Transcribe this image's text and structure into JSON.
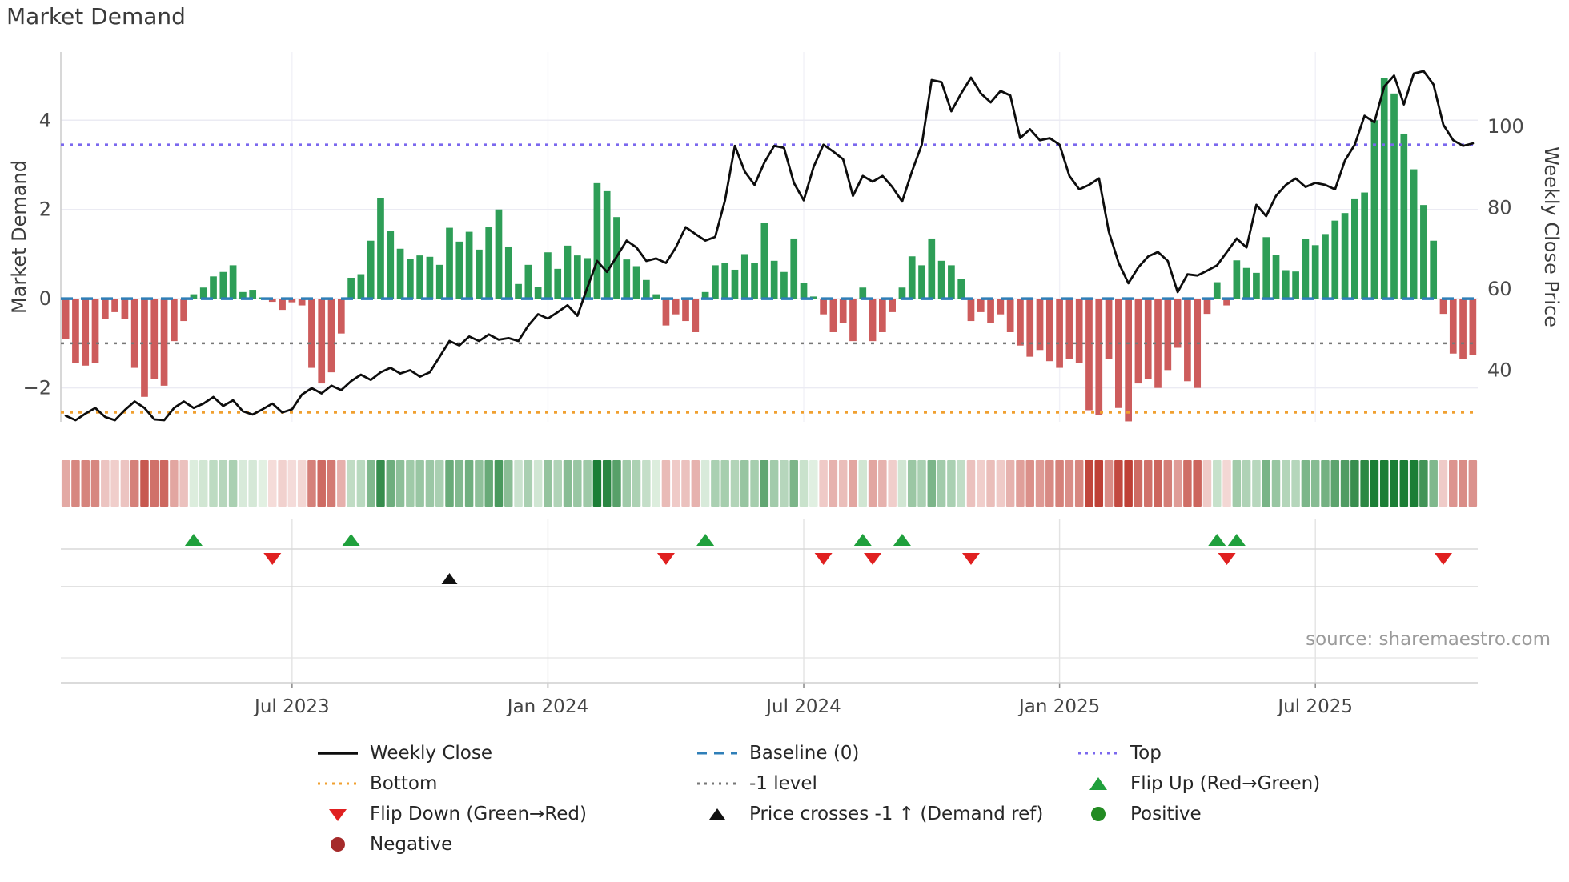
{
  "title": "Market Demand",
  "y_left_label": "Market Demand",
  "y_right_label": "Weekly Close Price",
  "source": "source: sharemaestro.com",
  "colors": {
    "bar_positive": "#2e9e57",
    "bar_negative": "#cd5c5c",
    "price_line": "#0d0d0d",
    "baseline": "#2f7fb8",
    "top_line": "#7b68ee",
    "bottom_line": "#f0a030",
    "minus_one_line": "#777777",
    "flip_up": "#1fa03c",
    "flip_down": "#e02020",
    "price_cross": "#111111",
    "positive_marker": "#228b22",
    "negative_marker": "#a52a2a",
    "heat_pos_light": "#e4f1e4",
    "heat_pos_dark": "#1b7e35",
    "heat_neg_light": "#f6e0de",
    "heat_neg_dark": "#bf4036"
  },
  "chart_data": {
    "type": "bar",
    "x_unit": "week",
    "n_weeks": 144,
    "title": "Market Demand",
    "ylabel_left": "Market Demand",
    "ylabel_right": "Weekly Close Price",
    "ylim_left": [
      -2.76,
      5.53
    ],
    "ylim_right": [
      27.3,
      118.3
    ],
    "grid": true,
    "legend_position": "bottom",
    "y_left_ticks": [
      {
        "label": "4",
        "value": 4
      },
      {
        "label": "2",
        "value": 2
      },
      {
        "label": "0",
        "value": 0
      },
      {
        "label": "−2",
        "value": -2
      }
    ],
    "y_right_ticks": [
      {
        "label": "100",
        "value": 100
      },
      {
        "label": "80",
        "value": 80
      },
      {
        "label": "60",
        "value": 60
      },
      {
        "label": "40",
        "value": 40
      }
    ],
    "x_ticks": [
      {
        "week": 23,
        "label": "Jul 2023"
      },
      {
        "week": 49,
        "label": "Jan 2024"
      },
      {
        "week": 75,
        "label": "Jul 2024"
      },
      {
        "week": 101,
        "label": "Jan 2025"
      },
      {
        "week": 127,
        "label": "Jul 2025"
      }
    ],
    "reference_lines": {
      "baseline": 0,
      "top": 3.45,
      "bottom": -2.55,
      "minus_one": -1
    },
    "series": [
      {
        "name": "Market Demand",
        "type": "bar",
        "axis": "left",
        "values": [
          -0.9,
          -1.45,
          -1.5,
          -1.45,
          -0.45,
          -0.3,
          -0.45,
          -1.55,
          -2.2,
          -1.8,
          -1.95,
          -0.95,
          -0.5,
          0.1,
          0.25,
          0.5,
          0.6,
          0.75,
          0.15,
          0.2,
          0.03,
          -0.07,
          -0.25,
          -0.08,
          -0.15,
          -1.55,
          -1.9,
          -1.65,
          -0.78,
          0.47,
          0.55,
          1.3,
          2.25,
          1.52,
          1.12,
          0.89,
          0.97,
          0.94,
          0.76,
          1.59,
          1.28,
          1.5,
          1.1,
          1.6,
          2.0,
          1.17,
          0.33,
          0.76,
          0.26,
          1.04,
          0.67,
          1.19,
          0.97,
          0.91,
          2.59,
          2.41,
          1.83,
          0.88,
          0.73,
          0.42,
          0.1,
          -0.6,
          -0.35,
          -0.5,
          -0.75,
          0.15,
          0.75,
          0.8,
          0.65,
          1.0,
          0.8,
          1.7,
          0.85,
          0.6,
          1.35,
          0.35,
          0.05,
          -0.35,
          -0.75,
          -0.55,
          -0.95,
          0.25,
          -0.95,
          -0.75,
          -0.3,
          0.25,
          0.95,
          0.75,
          1.35,
          0.85,
          0.75,
          0.45,
          -0.5,
          -0.3,
          -0.55,
          -0.35,
          -0.75,
          -1.05,
          -1.3,
          -1.15,
          -1.4,
          -1.55,
          -1.35,
          -1.45,
          -2.5,
          -2.6,
          -1.35,
          -2.45,
          -2.75,
          -1.9,
          -1.8,
          -2.0,
          -1.6,
          -1.1,
          -1.85,
          -2.0,
          -0.34,
          0.37,
          -0.15,
          0.86,
          0.69,
          0.58,
          1.38,
          0.98,
          0.64,
          0.61,
          1.34,
          1.2,
          1.45,
          1.75,
          1.92,
          2.23,
          2.38,
          4.0,
          4.95,
          4.6,
          3.7,
          2.9,
          2.1,
          1.3,
          -0.34,
          -1.23,
          -1.35,
          -1.26
        ]
      },
      {
        "name": "Weekly Close",
        "type": "line",
        "axis": "right",
        "values": [
          28.8,
          27.7,
          29.3,
          30.7,
          28.5,
          27.7,
          30.2,
          32.3,
          30.7,
          27.9,
          27.7,
          30.7,
          32.3,
          30.7,
          31.8,
          33.4,
          31.2,
          32.6,
          29.9,
          29.1,
          30.4,
          31.8,
          29.6,
          30.4,
          34.0,
          35.6,
          34.3,
          36.2,
          35.1,
          37.3,
          38.9,
          37.6,
          39.5,
          40.6,
          39.2,
          40.0,
          38.4,
          39.5,
          43.3,
          47.2,
          46.1,
          48.3,
          47.2,
          48.8,
          47.5,
          47.9,
          47.2,
          51.0,
          53.8,
          52.7,
          54.3,
          56.0,
          53.4,
          60.3,
          66.9,
          64.2,
          68.0,
          71.9,
          70.2,
          66.9,
          67.5,
          66.4,
          70.2,
          75.2,
          73.5,
          71.9,
          72.8,
          81.8,
          95.2,
          88.9,
          85.6,
          91.1,
          95.2,
          94.7,
          86.1,
          81.8,
          90.0,
          95.5,
          93.8,
          91.9,
          82.9,
          87.8,
          86.4,
          87.8,
          85.1,
          81.5,
          88.9,
          95.5,
          111.4,
          110.9,
          103.7,
          108.1,
          112.0,
          108.1,
          105.9,
          108.7,
          107.6,
          97.1,
          99.3,
          96.6,
          97.1,
          95.5,
          87.8,
          84.5,
          85.6,
          87.2,
          74.1,
          66.4,
          61.4,
          65.3,
          68.0,
          69.1,
          66.9,
          59.2,
          63.6,
          63.3,
          64.5,
          65.8,
          69.1,
          72.4,
          70.2,
          80.7,
          77.9,
          82.9,
          85.6,
          87.2,
          85.1,
          86.1,
          85.6,
          84.5,
          91.6,
          95.5,
          102.6,
          101.0,
          109.8,
          112.5,
          105.4,
          113.0,
          113.6,
          110.3,
          100.4,
          96.6,
          95.2,
          95.8
        ]
      }
    ],
    "markers": {
      "flip_up_weeks": [
        13,
        29,
        65,
        81,
        85,
        117,
        119
      ],
      "flip_down_weeks": [
        21,
        61,
        77,
        82,
        92,
        118,
        140
      ],
      "price_cross_weeks": [
        39
      ]
    },
    "heatmap": "same demand values as bar series, rendered as red-green intensity strip"
  },
  "legend": {
    "items": [
      {
        "id": "weekly-close",
        "swatch": "line-solid-black",
        "label": "Weekly Close",
        "col": 0,
        "row": 0
      },
      {
        "id": "bottom",
        "swatch": "dotted-orange",
        "label": "Bottom",
        "col": 0,
        "row": 1
      },
      {
        "id": "flip-down",
        "swatch": "triangle-down-red",
        "label": "Flip Down (Green→Red)",
        "col": 0,
        "row": 2
      },
      {
        "id": "negative",
        "swatch": "circle-darkred",
        "label": "Negative",
        "col": 0,
        "row": 3
      },
      {
        "id": "baseline",
        "swatch": "dashed-blue",
        "label": "Baseline (0)",
        "col": 1,
        "row": 0
      },
      {
        "id": "minus-one",
        "swatch": "dotted-gray",
        "label": "-1 level",
        "col": 1,
        "row": 1
      },
      {
        "id": "price-cross",
        "swatch": "triangle-up-black",
        "label": "Price crosses -1 ↑ (Demand ref)",
        "col": 1,
        "row": 2
      },
      {
        "id": "top",
        "swatch": "dotted-purple",
        "label": "Top",
        "col": 2,
        "row": 0
      },
      {
        "id": "flip-up",
        "swatch": "triangle-up-green",
        "label": "Flip Up (Red→Green)",
        "col": 2,
        "row": 1
      },
      {
        "id": "positive",
        "swatch": "circle-green",
        "label": "Positive",
        "col": 2,
        "row": 2
      }
    ]
  }
}
